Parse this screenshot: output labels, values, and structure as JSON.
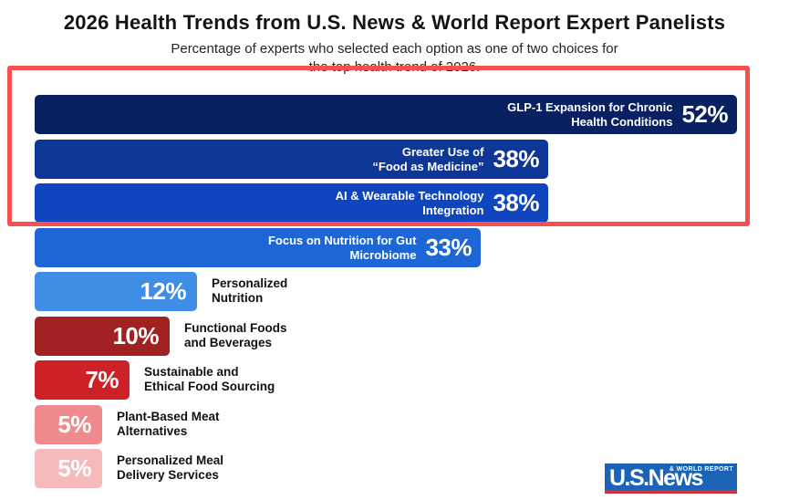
{
  "title": "2026 Health Trends from U.S. News & World Report Expert Panelists",
  "subtitle_line1": "Percentage of experts who selected each option as one of two choices for",
  "subtitle_line2": "the top health trend of 2026.",
  "chart_data": {
    "type": "bar",
    "orientation": "horizontal",
    "title": "2026 Health Trends from U.S. News & World Report Expert Panelists",
    "subtitle": "Percentage of experts who selected each option as one of two choices for the top health trend of 2026.",
    "value_unit": "%",
    "xlim": [
      0,
      55
    ],
    "grid": false,
    "legend": false,
    "categories": [
      "GLP-1 Expansion for Chronic Health Conditions",
      "Greater Use of “Food as Medicine”",
      "AI & Wearable Technology Integration",
      "Focus on Nutrition for Gut Microbiome",
      "Personalized Nutrition",
      "Functional Foods and Beverages",
      "Sustainable and Ethical Food Sourcing",
      "Plant-Based Meat Alternatives",
      "Personalized Meal Delivery Services"
    ],
    "values": [
      52,
      38,
      38,
      33,
      12,
      10,
      7,
      5,
      5
    ],
    "bars": [
      {
        "label_line1": "GLP-1 Expansion for Chronic",
        "label_line2": "Health Conditions",
        "value": 52,
        "display": "52%",
        "color": "#0a2161",
        "label_position": "inside"
      },
      {
        "label_line1": "Greater Use of",
        "label_line2": "“Food as Medicine”",
        "value": 38,
        "display": "38%",
        "color": "#0d3796",
        "label_position": "inside"
      },
      {
        "label_line1": "AI & Wearable Technology",
        "label_line2": "Integration",
        "value": 38,
        "display": "38%",
        "color": "#0f46c0",
        "label_position": "inside"
      },
      {
        "label_line1": "Focus on Nutrition for Gut",
        "label_line2": "Microbiome",
        "value": 33,
        "display": "33%",
        "color": "#1e66d6",
        "label_position": "inside"
      },
      {
        "label_line1": "Personalized",
        "label_line2": "Nutrition",
        "value": 12,
        "display": "12%",
        "color": "#3e8ee6",
        "label_position": "outside"
      },
      {
        "label_line1": "Functional Foods",
        "label_line2": "and Beverages",
        "value": 10,
        "display": "10%",
        "color": "#a12123",
        "label_position": "outside"
      },
      {
        "label_line1": "Sustainable and",
        "label_line2": "Ethical Food Sourcing",
        "value": 7,
        "display": "7%",
        "color": "#cc2127",
        "label_position": "outside"
      },
      {
        "label_line1": "Plant-Based Meat",
        "label_line2": "Alternatives",
        "value": 5,
        "display": "5%",
        "color": "#ef8b8f",
        "label_position": "outside"
      },
      {
        "label_line1": "Personalized Meal",
        "label_line2": "Delivery Services",
        "value": 5,
        "display": "5%",
        "color": "#f7babc",
        "label_position": "outside"
      }
    ]
  },
  "annotation": {
    "description": "Red rectangle highlighting the top three bars",
    "color": "#f5504d"
  },
  "logo": {
    "main": "U.S.News",
    "sub": "& WORLD REPORT",
    "bg_color": "#1c63b7",
    "underline_color": "#ce3339"
  }
}
